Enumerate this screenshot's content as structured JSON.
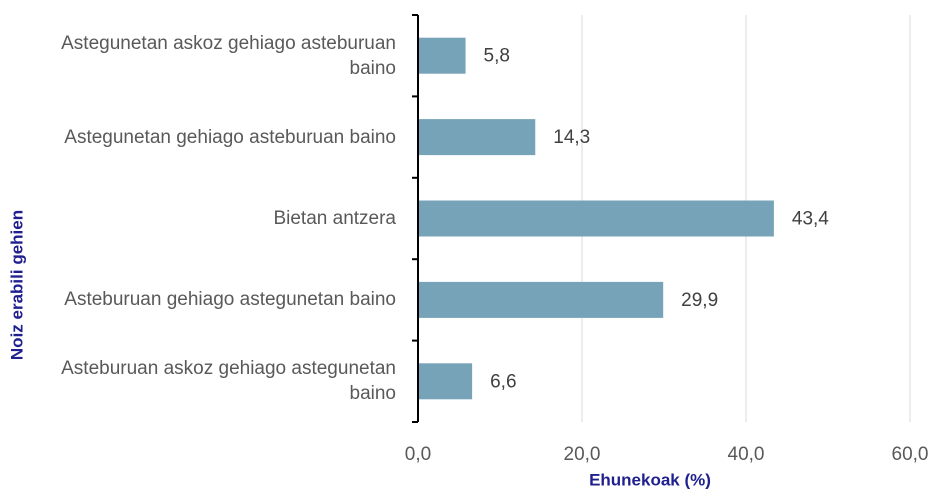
{
  "chart_data": {
    "type": "barh",
    "categories": [
      "Astegunetan askoz gehiago asteburuan baino",
      "Astegunetan gehiago asteburuan baino",
      "Bietan antzera",
      "Asteburuan gehiago astegunetan baino",
      "Asteburuan askoz gehiago astegunetan baino"
    ],
    "values": [
      5.8,
      14.3,
      43.4,
      29.9,
      6.6
    ],
    "value_labels": [
      "5,8",
      "14,3",
      "43,4",
      "29,9",
      "6,6"
    ],
    "color": "#77a3b8",
    "xlim": [
      0,
      60
    ],
    "xticks": [
      {
        "value": 0,
        "label": "0,0"
      },
      {
        "value": 20,
        "label": "20,0"
      },
      {
        "value": 40,
        "label": "40,0"
      },
      {
        "value": 60,
        "label": "60,0"
      }
    ],
    "x_label": "Ehunekoak (%)",
    "y_label": "Noiz erabili gehien",
    "grid": true
  }
}
